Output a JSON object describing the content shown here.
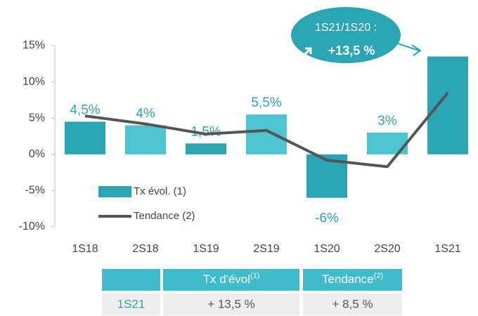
{
  "chart_data": {
    "type": "bar",
    "categories": [
      "1S18",
      "2S18",
      "1S19",
      "2S19",
      "1S20",
      "2S20",
      "1S21"
    ],
    "series": [
      {
        "name": "Tx évol. (1)",
        "type": "bar",
        "colors": [
          "#2aa5b3",
          "#4ec4d1",
          "#2aa5b3",
          "#4ec4d1",
          "#2aa5b3",
          "#4ec4d1",
          "#2aa5b3"
        ],
        "values": [
          4.5,
          4,
          1.5,
          5.5,
          -6,
          3,
          13.5
        ],
        "value_labels": [
          "4,5%",
          "4%",
          "1,5%",
          "5,5%",
          "-6%",
          "3%",
          null
        ]
      },
      {
        "name": "Tendance (2)",
        "type": "line",
        "color": "#555555",
        "values": [
          5.3,
          4.2,
          2.8,
          3.3,
          -0.8,
          -1.7,
          8.5
        ]
      }
    ],
    "ylim": [
      -10,
      15
    ],
    "yticks": [
      {
        "value": -10,
        "label": "-10%"
      },
      {
        "value": -5,
        "label": "-5%"
      },
      {
        "value": 0,
        "label": "0%"
      },
      {
        "value": 5,
        "label": "5%"
      },
      {
        "value": 10,
        "label": "10%"
      },
      {
        "value": 15,
        "label": "15%"
      }
    ],
    "annotation": {
      "text": "1S21/1S20 :",
      "value_label": "+13,5 %"
    }
  },
  "table": {
    "header": [
      {
        "text": "Tx d'évol",
        "note": "(1)"
      },
      {
        "text": "Tendance",
        "note": "(2)"
      }
    ],
    "rows": [
      [
        "1S21",
        "+ 13,5 %",
        "+ 8,5 %"
      ]
    ]
  }
}
